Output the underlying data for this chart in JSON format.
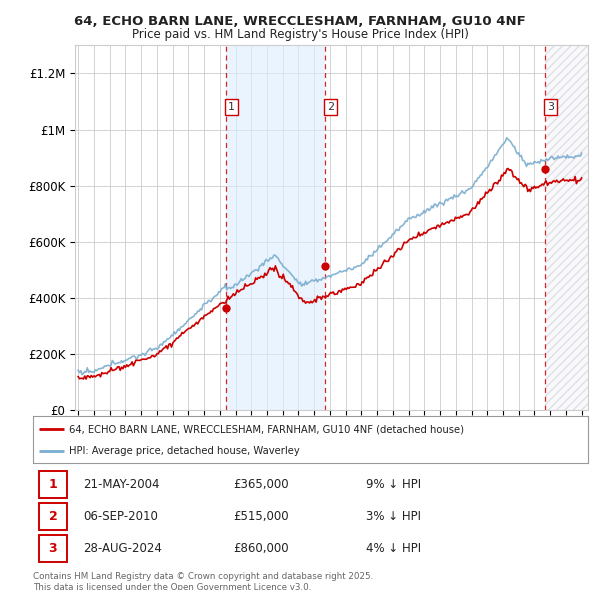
{
  "title_line1": "64, ECHO BARN LANE, WRECCLESHAM, FARNHAM, GU10 4NF",
  "title_line2": "Price paid vs. HM Land Registry's House Price Index (HPI)",
  "ylim": [
    0,
    1300000
  ],
  "yticks": [
    0,
    200000,
    400000,
    600000,
    800000,
    1000000,
    1200000
  ],
  "ytick_labels": [
    "£0",
    "£200K",
    "£400K",
    "£600K",
    "£800K",
    "£1M",
    "£1.2M"
  ],
  "year_start": 1995,
  "year_end": 2027,
  "sale_dates_decimal": [
    2004.387,
    2010.676,
    2024.657
  ],
  "sale_prices": [
    365000,
    515000,
    860000
  ],
  "sale_labels": [
    "1",
    "2",
    "3"
  ],
  "sale_date_strings": [
    "21-MAY-2004",
    "06-SEP-2010",
    "28-AUG-2024"
  ],
  "sale_price_strings": [
    "£365,000",
    "£515,000",
    "£860,000"
  ],
  "sale_pct_strings": [
    "9% ↓ HPI",
    "3% ↓ HPI",
    "4% ↓ HPI"
  ],
  "red_line_color": "#cc0000",
  "blue_line_color": "#7aadcf",
  "shade_color": "#ddeeff",
  "grid_color": "#cccccc",
  "background_color": "#ffffff",
  "legend_label_red": "64, ECHO BARN LANE, WRECCLESHAM, FARNHAM, GU10 4NF (detached house)",
  "legend_label_blue": "HPI: Average price, detached house, Waverley",
  "footnote": "Contains HM Land Registry data © Crown copyright and database right 2025.\nThis data is licensed under the Open Government Licence v3.0."
}
